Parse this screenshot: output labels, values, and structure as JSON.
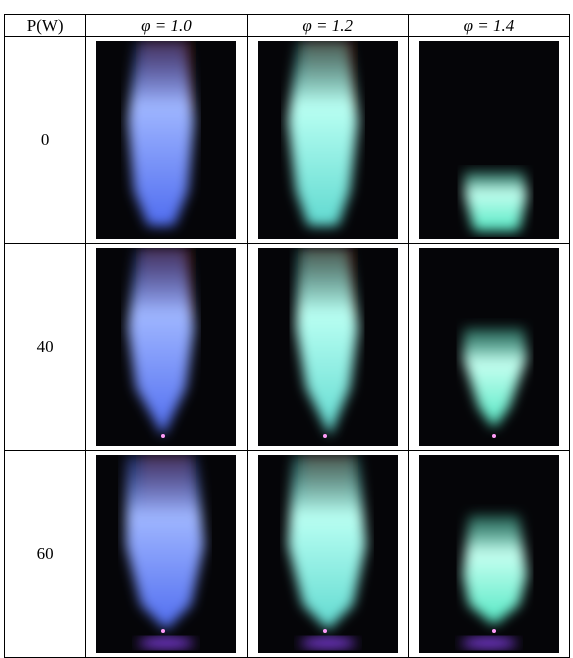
{
  "table": {
    "header": [
      "P(W)",
      "φ = 1.0",
      "φ = 1.2",
      "φ = 1.4"
    ],
    "rows": [
      [
        0
      ],
      [
        40
      ],
      [
        60
      ]
    ]
  }
}
